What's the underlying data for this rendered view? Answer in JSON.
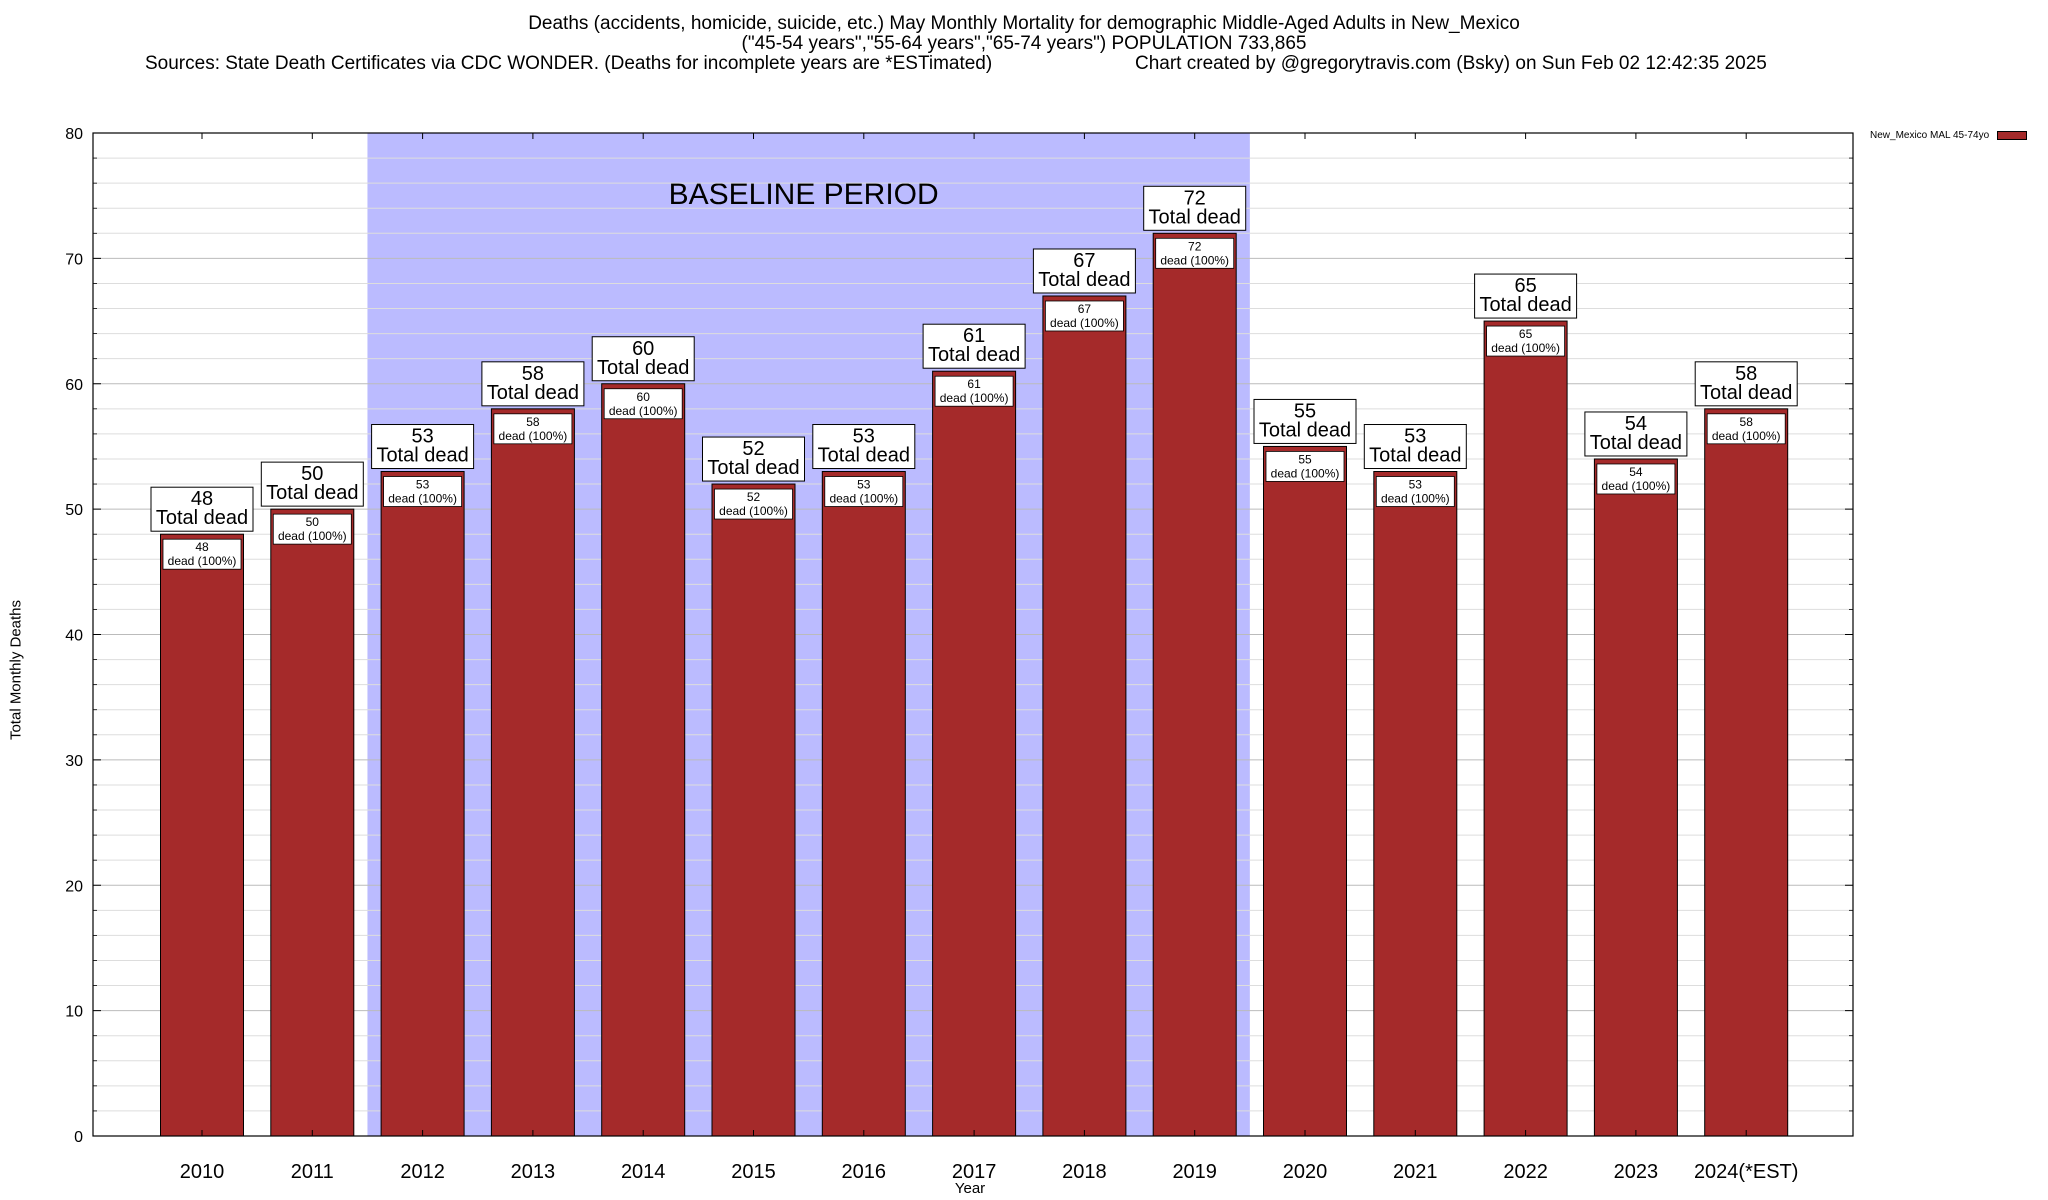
{
  "header": {
    "title_line1": "Deaths (accidents, homicide, suicide, etc.) May Monthly Mortality for demographic Middle-Aged Adults in New_Mexico",
    "title_line2": "(\"45-54 years\",\"55-64 years\",\"65-74 years\") POPULATION 733,865",
    "sources": "Sources: State Death Certificates via CDC WONDER. (Deaths for incomplete years are *ESTimated)",
    "credit": "Chart created by @gregorytravis.com (Bsky) on Sun Feb 02 12:42:35 2025"
  },
  "chart_data": {
    "type": "bar",
    "title": "Deaths (accidents, homicide, suicide, etc.) May Monthly Mortality for demographic Middle-Aged Adults in New_Mexico",
    "xlabel": "Year",
    "ylabel": "Total Monthly Deaths",
    "ylim": [
      0,
      80
    ],
    "yticks": [
      0,
      10,
      20,
      30,
      40,
      50,
      60,
      70,
      80
    ],
    "categories": [
      "2010",
      "2011",
      "2012",
      "2013",
      "2014",
      "2015",
      "2016",
      "2017",
      "2018",
      "2019",
      "2020",
      "2021",
      "2022",
      "2023",
      "2024(*EST)"
    ],
    "series": [
      {
        "name": "New_Mexico MAL 45-74yo",
        "color": "#a52a2a",
        "values": [
          48,
          50,
          53,
          58,
          60,
          52,
          53,
          61,
          67,
          72,
          55,
          53,
          65,
          54,
          58
        ]
      }
    ],
    "total_label": "Total dead",
    "inner_labels": [
      "dead (100%)",
      "dead (100%)",
      "dead (100%)",
      "dead (100%)",
      "dead (100%)",
      "dead (100%)",
      "dead (100%)",
      "dead (100%)",
      "dead (100%)",
      "dead (100%)",
      "dead (100%)",
      "dead (100%)",
      "dead (100%)",
      "dead (100%)",
      "dead (100%)"
    ],
    "baseline": {
      "label": "BASELINE PERIOD",
      "from": "2012",
      "to": "2019",
      "color": "#bbbbff"
    },
    "grid": "horizontal",
    "legend_position": "top-right"
  }
}
